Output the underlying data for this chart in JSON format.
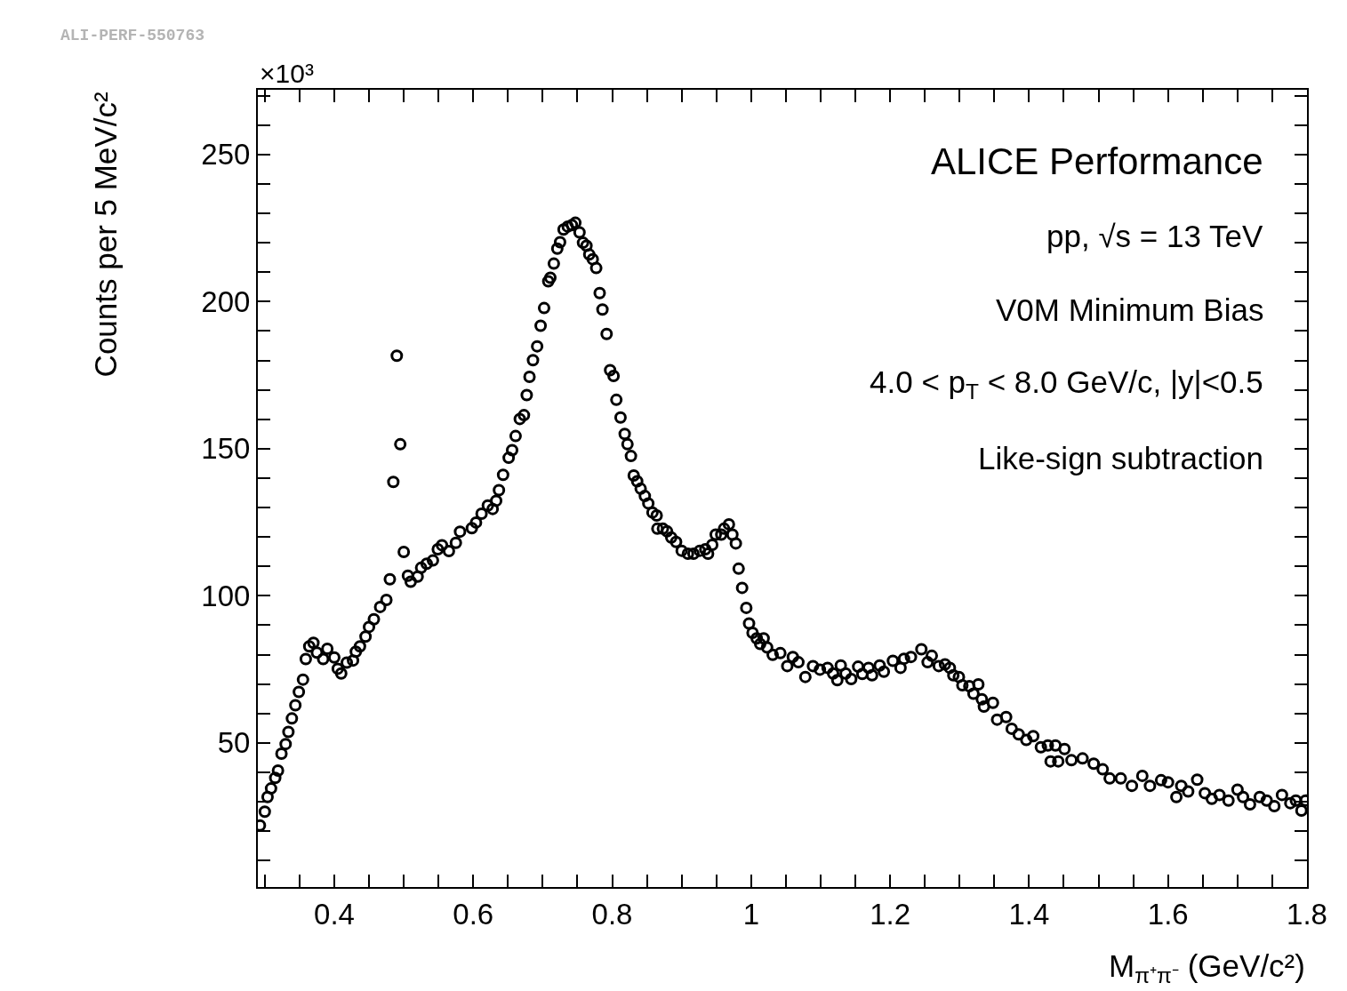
{
  "chart_data": {
    "type": "scatter",
    "xlabel": "M$_{π⁺π⁻}$ (GeV/c²)",
    "ylabel": "Counts per 5 MeV/c²",
    "annotations": [
      "ALI-PERF-550763",
      "×10³",
      "ALICE Performance",
      "pp, √s = 13 TeV",
      "V0M Minimum Bias",
      "4.0 < p$_{T}$ < 8.0 GeV/c, |y|<0.5",
      "Like-sign subtraction"
    ],
    "marker": "circle",
    "xlim": [
      0.29,
      1.8
    ],
    "ylim": [
      1,
      272
    ],
    "xticks": [
      {
        "value": 0.3,
        "label": null
      },
      {
        "value": 0.35,
        "label": null
      },
      0.4,
      {
        "value": 0.45,
        "label": null
      },
      {
        "value": 0.5,
        "label": null
      },
      {
        "value": 0.55,
        "label": null
      },
      0.6,
      {
        "value": 0.65,
        "label": null
      },
      {
        "value": 0.7,
        "label": null
      },
      {
        "value": 0.75,
        "label": null
      },
      0.8,
      {
        "value": 0.85,
        "label": null
      },
      {
        "value": 0.9,
        "label": null
      },
      {
        "value": 0.95,
        "label": null
      },
      1,
      {
        "value": 1.05,
        "label": null
      },
      {
        "value": 1.1,
        "label": null
      },
      {
        "value": 1.15,
        "label": null
      },
      1.2,
      {
        "value": 1.25,
        "label": null
      },
      {
        "value": 1.3,
        "label": null
      },
      {
        "value": 1.35,
        "label": null
      },
      1.4,
      {
        "value": 1.45,
        "label": null
      },
      {
        "value": 1.5,
        "label": null
      },
      {
        "value": 1.55,
        "label": null
      },
      1.6,
      {
        "value": 1.65,
        "label": null
      },
      {
        "value": 1.7,
        "label": null
      },
      {
        "value": 1.75,
        "label": null
      },
      1.8
    ],
    "yticks": [
      {
        "value": 10,
        "label": null
      },
      {
        "value": 20,
        "label": null
      },
      {
        "value": 30,
        "label": null
      },
      {
        "value": 40,
        "label": null
      },
      50,
      {
        "value": 60,
        "label": null
      },
      {
        "value": 70,
        "label": null
      },
      {
        "value": 80,
        "label": null
      },
      {
        "value": 90,
        "label": null
      },
      100,
      {
        "value": 110,
        "label": null
      },
      {
        "value": 120,
        "label": null
      },
      {
        "value": 130,
        "label": null
      },
      {
        "value": 140,
        "label": null
      },
      150,
      {
        "value": 160,
        "label": null
      },
      {
        "value": 170,
        "label": null
      },
      {
        "value": 180,
        "label": null
      },
      {
        "value": 190,
        "label": null
      },
      200,
      {
        "value": 210,
        "label": null
      },
      {
        "value": 220,
        "label": null
      },
      {
        "value": 230,
        "label": null
      },
      {
        "value": 240,
        "label": null
      },
      250,
      {
        "value": 260,
        "label": null
      },
      {
        "value": 270,
        "label": null
      }
    ],
    "series": [
      {
        "color": "#000000",
        "x": [
          0.293,
          0.3,
          0.304,
          0.309,
          0.315,
          0.319,
          0.324,
          0.33,
          0.334,
          0.339,
          0.344,
          0.349,
          0.355,
          0.359,
          0.364,
          0.37,
          0.375,
          0.384,
          0.39,
          0.4,
          0.405,
          0.41,
          0.418,
          0.427,
          0.431,
          0.437,
          0.445,
          0.45,
          0.457,
          0.466,
          0.475,
          0.48,
          0.485,
          0.49,
          0.495,
          0.5,
          0.506,
          0.51,
          0.52,
          0.525,
          0.533,
          0.542,
          0.549,
          0.555,
          0.565,
          0.575,
          0.581,
          0.598,
          0.604,
          0.612,
          0.621,
          0.628,
          0.633,
          0.637,
          0.643,
          0.651,
          0.656,
          0.661,
          0.667,
          0.673,
          0.677,
          0.681,
          0.686,
          0.692,
          0.697,
          0.702,
          0.708,
          0.711,
          0.716,
          0.721,
          0.725,
          0.73,
          0.736,
          0.742,
          0.747,
          0.753,
          0.758,
          0.763,
          0.767,
          0.772,
          0.777,
          0.782,
          0.786,
          0.792,
          0.797,
          0.802,
          0.806,
          0.812,
          0.818,
          0.822,
          0.827,
          0.831,
          0.836,
          0.841,
          0.847,
          0.852,
          0.858,
          0.864,
          0.865,
          0.873,
          0.879,
          0.885,
          0.892,
          0.9,
          0.909,
          0.917,
          0.926,
          0.934,
          0.938,
          0.944,
          0.949,
          0.957,
          0.961,
          0.968,
          0.973,
          0.978,
          0.982,
          0.987,
          0.993,
          0.997,
          1.002,
          1.008,
          1.013,
          1.018,
          1.023,
          1.031,
          1.042,
          1.052,
          1.06,
          1.068,
          1.078,
          1.089,
          1.099,
          1.11,
          1.118,
          1.124,
          1.129,
          1.136,
          1.144,
          1.154,
          1.16,
          1.169,
          1.174,
          1.185,
          1.191,
          1.204,
          1.215,
          1.22,
          1.23,
          1.245,
          1.254,
          1.26,
          1.27,
          1.279,
          1.286,
          1.291,
          1.299,
          1.304,
          1.314,
          1.32,
          1.327,
          1.332,
          1.335,
          1.348,
          1.354,
          1.367,
          1.375,
          1.385,
          1.396,
          1.406,
          1.417,
          1.427,
          1.431,
          1.438,
          1.442,
          1.451,
          1.461,
          1.477,
          1.493,
          1.506,
          1.516,
          1.532,
          1.548,
          1.563,
          1.574,
          1.59,
          1.6,
          1.612,
          1.619,
          1.629,
          1.642,
          1.653,
          1.663,
          1.674,
          1.687,
          1.7,
          1.708,
          1.718,
          1.732,
          1.742,
          1.753,
          1.764,
          1.776,
          1.784,
          1.792,
          1.798
        ],
        "values": [
          21.9,
          26.6,
          31.6,
          34.5,
          38.1,
          40.6,
          46.3,
          49.6,
          53.7,
          58.3,
          62.8,
          67.3,
          71.5,
          78.5,
          82.8,
          84.0,
          80.7,
          78.5,
          82.0,
          79.0,
          75.2,
          73.6,
          77.3,
          78.0,
          81.0,
          82.8,
          86.1,
          89.4,
          92.0,
          96.2,
          98.6,
          105.6,
          138.7,
          181.6,
          151.5,
          114.9,
          106.8,
          104.8,
          106.5,
          109.5,
          110.9,
          112.0,
          115.8,
          117.2,
          115.2,
          118.0,
          121.8,
          123.0,
          124.9,
          127.9,
          130.7,
          129.5,
          132.3,
          135.9,
          141.1,
          146.9,
          149.5,
          154.3,
          160.1,
          161.4,
          168.2,
          174.4,
          180.1,
          184.8,
          191.8,
          197.8,
          206.9,
          208.1,
          212.9,
          218.0,
          220.2,
          224.5,
          225.5,
          226.0,
          226.8,
          223.5,
          220.0,
          219.0,
          216.0,
          214.4,
          211.4,
          202.9,
          197.3,
          189.0,
          176.7,
          174.7,
          166.6,
          160.6,
          155.0,
          151.5,
          147.5,
          140.9,
          138.9,
          136.4,
          133.9,
          131.4,
          128.3,
          127.3,
          122.8,
          122.8,
          121.9,
          119.8,
          118.3,
          115.3,
          114.3,
          114.3,
          115.3,
          115.8,
          114.3,
          117.3,
          120.8,
          120.8,
          122.8,
          124.3,
          120.8,
          117.8,
          109.2,
          102.7,
          95.9,
          90.6,
          87.4,
          85.5,
          83.6,
          85.5,
          82.4,
          79.9,
          80.5,
          76.1,
          79.2,
          77.4,
          72.4,
          76.1,
          74.9,
          75.5,
          73.6,
          71.3,
          76.3,
          73.6,
          71.7,
          75.9,
          73.4,
          75.5,
          73.0,
          76.3,
          74.2,
          77.9,
          75.5,
          78.6,
          79.2,
          81.8,
          77.4,
          79.6,
          76.1,
          76.7,
          75.5,
          73.0,
          72.4,
          69.6,
          69.3,
          66.7,
          69.9,
          64.8,
          62.3,
          63.6,
          57.9,
          58.8,
          54.8,
          52.9,
          51.0,
          52.3,
          48.5,
          49.1,
          43.7,
          49.1,
          43.7,
          47.9,
          44.1,
          44.7,
          42.9,
          41.0,
          37.9,
          37.9,
          35.4,
          38.8,
          35.4,
          37.3,
          36.6,
          31.6,
          35.4,
          33.5,
          37.5,
          32.9,
          31.0,
          32.3,
          30.4,
          34.1,
          31.6,
          29.1,
          31.6,
          30.4,
          28.5,
          32.3,
          29.5,
          30.4,
          27.0,
          30.4
        ]
      }
    ]
  }
}
